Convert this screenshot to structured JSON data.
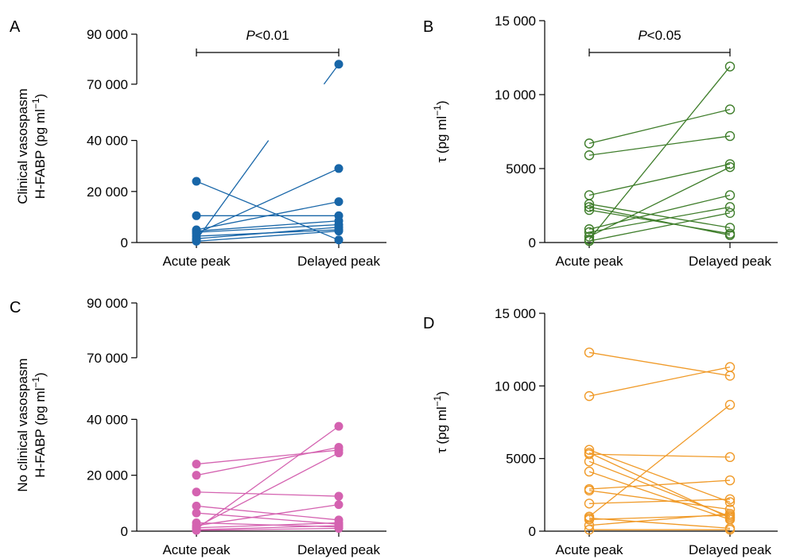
{
  "chart_data": [
    {
      "panel": "A",
      "type": "line",
      "series_color": "#1866a8",
      "marker": "filled",
      "categories": [
        "Acute peak",
        "Delayed peak"
      ],
      "ylabel_lines": [
        "Clinical vasospasm",
        "H-FABP (pg ml",
        "−1",
        ")"
      ],
      "yticks": [
        0,
        20000,
        40000,
        70000,
        90000
      ],
      "ytick_labels": [
        "0",
        "20 000",
        "40 000",
        "70 000",
        "90 000"
      ],
      "axis_break": {
        "between": [
          40000,
          70000
        ]
      },
      "significance": {
        "text_italic": "P",
        "text": "<0.01"
      },
      "pairs": [
        [
          24000,
          1000
        ],
        [
          10500,
          10500
        ],
        [
          5000,
          16000
        ],
        [
          4500,
          8500
        ],
        [
          4000,
          7000
        ],
        [
          3500,
          29000
        ],
        [
          2500,
          5000
        ],
        [
          1500,
          6000
        ],
        [
          1000,
          78000
        ],
        [
          500,
          4500
        ]
      ]
    },
    {
      "panel": "B",
      "type": "line",
      "series_color": "#3e7d2a",
      "marker": "open",
      "categories": [
        "Acute peak",
        "Delayed peak"
      ],
      "ylabel_lines": [
        "τ (pg ml",
        "−1",
        ")"
      ],
      "yticks": [
        0,
        5000,
        10000,
        15000
      ],
      "ytick_labels": [
        "0",
        "5000",
        "10 000",
        "15 000"
      ],
      "significance": {
        "text_italic": "P",
        "text": "<0.05"
      },
      "pairs": [
        [
          6700,
          9000
        ],
        [
          5900,
          7200
        ],
        [
          3200,
          5300
        ],
        [
          2600,
          1000
        ],
        [
          2400,
          500
        ],
        [
          2200,
          600
        ],
        [
          900,
          3200
        ],
        [
          700,
          2400
        ],
        [
          400,
          5100
        ],
        [
          200,
          11900
        ],
        [
          100,
          2000
        ]
      ]
    },
    {
      "panel": "C",
      "type": "line",
      "series_color": "#d462b0",
      "marker": "filled",
      "categories": [
        "Acute peak",
        "Delayed peak"
      ],
      "ylabel_lines": [
        "No clinical vasospasm",
        "H-FABP (pg ml",
        "−1",
        ")"
      ],
      "yticks": [
        0,
        20000,
        40000,
        70000,
        90000
      ],
      "ytick_labels": [
        "0",
        "20 000",
        "40 000",
        "70 000",
        "90 000"
      ],
      "axis_break": {
        "between": [
          40000,
          70000
        ]
      },
      "pairs": [
        [
          24000,
          29000
        ],
        [
          20000,
          30000
        ],
        [
          14000,
          12500
        ],
        [
          9000,
          4000
        ],
        [
          6500,
          2500
        ],
        [
          3000,
          1500
        ],
        [
          2000,
          9500
        ],
        [
          1500,
          28000
        ],
        [
          1200,
          3000
        ],
        [
          800,
          37500
        ],
        [
          500,
          2000
        ],
        [
          300,
          1000
        ]
      ]
    },
    {
      "panel": "D",
      "type": "line",
      "series_color": "#f09a28",
      "marker": "open",
      "categories": [
        "Acute peak",
        "Delayed peak"
      ],
      "ylabel_lines": [
        "τ (pg ml",
        "−1",
        ")"
      ],
      "yticks": [
        0,
        5000,
        10000,
        15000
      ],
      "ytick_labels": [
        "0",
        "5000",
        "10 000",
        "15 000"
      ],
      "pairs": [
        [
          12300,
          10700
        ],
        [
          9300,
          11300
        ],
        [
          5600,
          2000
        ],
        [
          5400,
          900
        ],
        [
          5300,
          5100
        ],
        [
          4800,
          1000
        ],
        [
          4100,
          800
        ],
        [
          2900,
          3500
        ],
        [
          2800,
          1500
        ],
        [
          1900,
          2200
        ],
        [
          1000,
          8700
        ],
        [
          900,
          200
        ],
        [
          800,
          1100
        ],
        [
          400,
          1200
        ],
        [
          100,
          100
        ]
      ]
    }
  ]
}
